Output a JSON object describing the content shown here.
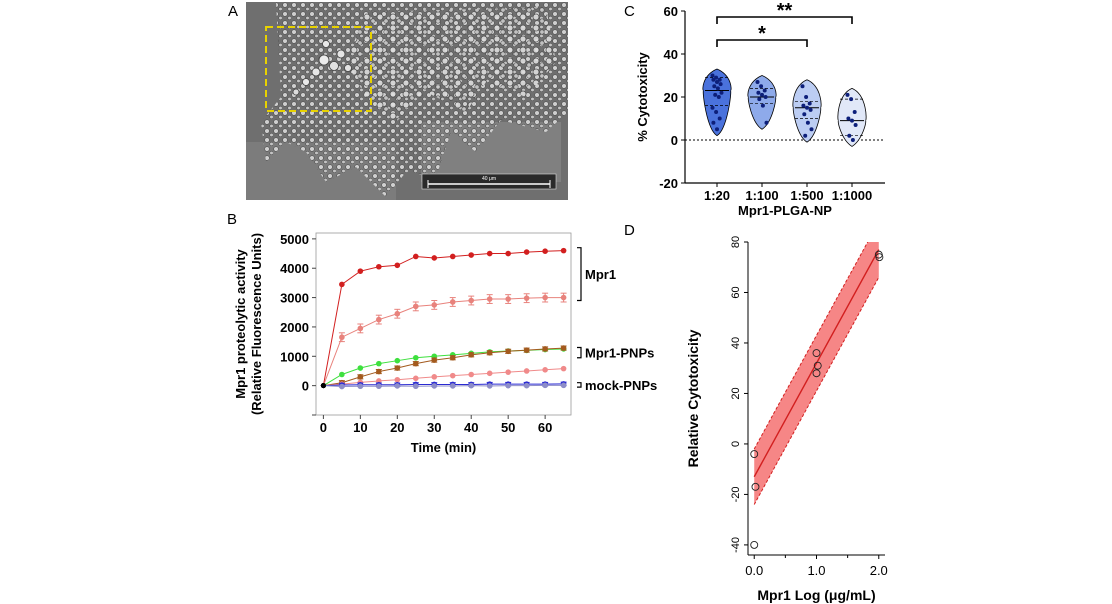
{
  "panels": {
    "a": "A",
    "b": "B",
    "c": "C",
    "d": "D"
  },
  "panel_a": {
    "scale_bar_label": "40 μm",
    "inset_color": "#e8d200"
  },
  "chart_data": [
    {
      "id": "B",
      "type": "line",
      "xlabel": "Time (min)",
      "ylabel_line1": "Mpr1 proteolytic activity",
      "ylabel_line2": "(Relative Fluorescence Units)",
      "xlim": [
        -2,
        67
      ],
      "ylim": [
        -1000,
        5200
      ],
      "xticks": [
        0,
        10,
        20,
        30,
        40,
        50,
        60
      ],
      "yticks": [
        0,
        1000,
        2000,
        3000,
        4000,
        5000
      ],
      "x": [
        0,
        5,
        10,
        15,
        20,
        25,
        30,
        35,
        40,
        45,
        50,
        55,
        60,
        65
      ],
      "series": [
        {
          "color": "#d21f1f",
          "values": [
            0,
            3450,
            3900,
            4050,
            4100,
            4400,
            4350,
            4400,
            4450,
            4500,
            4500,
            4550,
            4580,
            4600
          ]
        },
        {
          "color": "#e8827c",
          "values": [
            0,
            1650,
            1950,
            2250,
            2450,
            2700,
            2750,
            2850,
            2900,
            2950,
            2950,
            2980,
            3000,
            3000
          ],
          "err": 150
        },
        {
          "color": "#3ee03e",
          "values": [
            0,
            380,
            600,
            750,
            850,
            950,
            1000,
            1050,
            1100,
            1150,
            1180,
            1200,
            1230,
            1250
          ]
        },
        {
          "color": "#a35a1e",
          "values": [
            0,
            100,
            300,
            480,
            600,
            750,
            870,
            950,
            1050,
            1120,
            1170,
            1210,
            1250,
            1280
          ],
          "err": 70
        },
        {
          "color": "#f08a8a",
          "values": [
            0,
            50,
            110,
            160,
            200,
            250,
            300,
            340,
            380,
            420,
            460,
            500,
            540,
            580
          ]
        },
        {
          "color": "#2a2ad2",
          "values": [
            0,
            20,
            30,
            30,
            30,
            40,
            40,
            40,
            40,
            50,
            50,
            50,
            50,
            60
          ],
          "err": 60
        },
        {
          "color": "#8d8dc8",
          "values": [
            0,
            -30,
            -20,
            -20,
            -10,
            -20,
            -10,
            -10,
            0,
            -10,
            0,
            0,
            10,
            10
          ]
        }
      ],
      "brackets": [
        {
          "label": "Mpr1",
          "from": 2900,
          "to": 4700
        },
        {
          "label": "Mpr1-PNPs",
          "from": 950,
          "to": 1300
        },
        {
          "label": "mock-PNPs",
          "from": -50,
          "to": 100
        }
      ]
    },
    {
      "id": "C",
      "type": "violin",
      "ylabel": "% Cytotoxicity",
      "xlabel": "Mpr1-PLGA-NP",
      "ylim": [
        -20,
        60
      ],
      "yticks": [
        -20,
        0,
        20,
        40,
        60
      ],
      "categories": [
        "1:20",
        "1:100",
        "1:500",
        "1:1000"
      ],
      "fills": [
        "#4a72dc",
        "#8eaaea",
        "#bccdf3",
        "#e1e8f8"
      ],
      "points": [
        [
          30,
          29,
          28,
          28,
          27,
          26,
          25,
          24,
          22,
          21,
          20,
          15,
          13,
          10,
          8,
          5
        ],
        [
          27,
          25,
          23,
          22,
          21,
          20,
          19,
          16,
          8
        ],
        [
          25,
          20,
          17,
          16,
          15,
          14,
          12,
          8,
          5,
          2
        ],
        [
          21,
          19,
          13,
          10,
          9,
          7,
          2,
          0
        ]
      ],
      "quartiles": [
        [
          16,
          23,
          29
        ],
        [
          17,
          20,
          24
        ],
        [
          10,
          15,
          18
        ],
        [
          2,
          9,
          19
        ]
      ],
      "significance": [
        {
          "from": 0,
          "to": 2,
          "label": "*"
        },
        {
          "from": 0,
          "to": 3,
          "label": "**"
        }
      ]
    },
    {
      "id": "D",
      "type": "scatter",
      "xlabel": "Mpr1 Log (μg/mL)",
      "ylabel": "Relative Cytotoxicity",
      "xlim": [
        -0.1,
        2.1
      ],
      "ylim": [
        -44,
        80
      ],
      "xticks": [
        0,
        1,
        2
      ],
      "xtick_labels": [
        "0.0",
        "1.0",
        "2.0"
      ],
      "yticks": [
        -40,
        -20,
        0,
        20,
        40,
        60,
        80
      ],
      "points": [
        [
          0,
          -4
        ],
        [
          0.02,
          -17
        ],
        [
          0,
          -40
        ],
        [
          1,
          36
        ],
        [
          1.02,
          31
        ],
        [
          1,
          28
        ],
        [
          2,
          75
        ],
        [
          2.01,
          74
        ]
      ],
      "fit": {
        "intercept": -13,
        "slope": 45
      },
      "band_halfwidth": 11,
      "band_color": "#f47171",
      "line_color": "#d21f1f"
    }
  ]
}
